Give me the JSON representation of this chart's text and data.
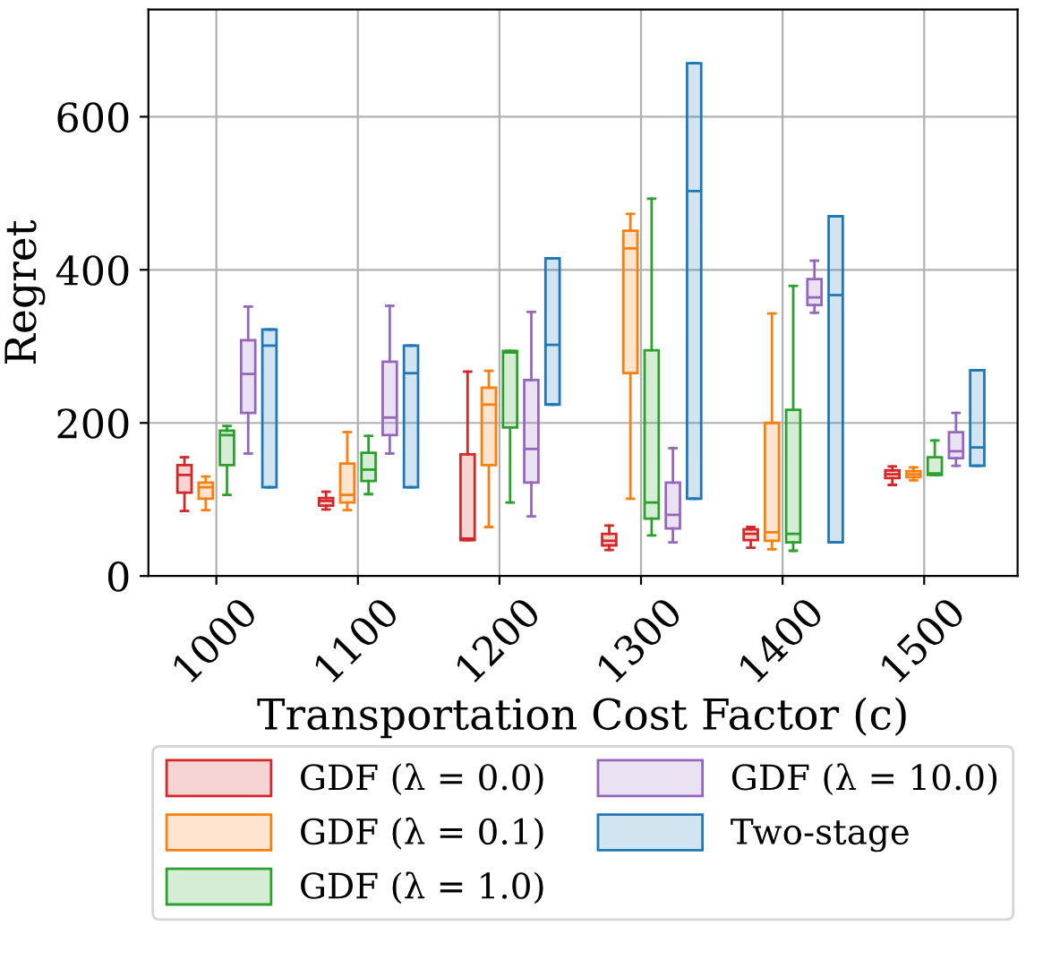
{
  "chart_data": {
    "type": "box",
    "xlabel": "Transportation Cost Factor (c)",
    "ylabel": "Regret",
    "categories": [
      "1000",
      "1100",
      "1200",
      "1300",
      "1400",
      "1500"
    ],
    "ylim": [
      0,
      740
    ],
    "yticks": [
      0,
      200,
      400,
      600
    ],
    "grid": true,
    "legend": "bottom",
    "series": [
      {
        "name": "GDF (λ = 0.0)",
        "color": "#d62728",
        "boxes": [
          {
            "low": 85,
            "q1": 109,
            "median": 132,
            "q3": 145,
            "high": 155
          },
          {
            "low": 87,
            "q1": 92,
            "median": 98,
            "q3": 102,
            "high": 110
          },
          {
            "low": 47,
            "q1": 47,
            "median": 49,
            "q3": 159,
            "high": 267
          },
          {
            "low": 34,
            "q1": 40,
            "median": 46,
            "q3": 55,
            "high": 66
          },
          {
            "low": 37,
            "q1": 47,
            "median": 55,
            "q3": 61,
            "high": 64
          },
          {
            "low": 119,
            "q1": 128,
            "median": 133,
            "q3": 138,
            "high": 143
          }
        ]
      },
      {
        "name": "GDF (λ = 0.1)",
        "color": "#ff7f0e",
        "boxes": [
          {
            "low": 86,
            "q1": 101,
            "median": 116,
            "q3": 122,
            "high": 130
          },
          {
            "low": 86,
            "q1": 96,
            "median": 106,
            "q3": 147,
            "high": 188
          },
          {
            "low": 64,
            "q1": 145,
            "median": 224,
            "q3": 246,
            "high": 268
          },
          {
            "low": 101,
            "q1": 265,
            "median": 428,
            "q3": 451,
            "high": 473
          },
          {
            "low": 35,
            "q1": 46,
            "median": 57,
            "q3": 200,
            "high": 343
          },
          {
            "low": 125,
            "q1": 129,
            "median": 133,
            "q3": 137,
            "high": 142
          }
        ]
      },
      {
        "name": "GDF (λ = 1.0)",
        "color": "#2ca02c",
        "boxes": [
          {
            "low": 106,
            "q1": 145,
            "median": 184,
            "q3": 190,
            "high": 196
          },
          {
            "low": 107,
            "q1": 124,
            "median": 139,
            "q3": 161,
            "high": 183
          },
          {
            "low": 96,
            "q1": 194,
            "median": 292,
            "q3": 294,
            "high": 294
          },
          {
            "low": 53,
            "q1": 75,
            "median": 96,
            "q3": 295,
            "high": 493
          },
          {
            "low": 33,
            "q1": 44,
            "median": 55,
            "q3": 217,
            "high": 379
          },
          {
            "low": 132,
            "q1": 132,
            "median": 134,
            "q3": 155,
            "high": 177
          }
        ]
      },
      {
        "name": "GDF (λ = 10.0)",
        "color": "#9467bd",
        "boxes": [
          {
            "low": 160,
            "q1": 213,
            "median": 264,
            "q3": 308,
            "high": 352
          },
          {
            "low": 160,
            "q1": 184,
            "median": 207,
            "q3": 280,
            "high": 353
          },
          {
            "low": 78,
            "q1": 122,
            "median": 166,
            "q3": 256,
            "high": 345
          },
          {
            "low": 44,
            "q1": 62,
            "median": 80,
            "q3": 122,
            "high": 167
          },
          {
            "low": 344,
            "q1": 354,
            "median": 364,
            "q3": 388,
            "high": 412
          },
          {
            "low": 144,
            "q1": 154,
            "median": 163,
            "q3": 188,
            "high": 213
          }
        ]
      },
      {
        "name": "Two-stage",
        "color": "#1f77b4",
        "boxes": [
          {
            "low": 116,
            "q1": 116,
            "median": 301,
            "q3": 322,
            "high": 322
          },
          {
            "low": 116,
            "q1": 116,
            "median": 265,
            "q3": 301,
            "high": 301
          },
          {
            "low": 224,
            "q1": 224,
            "median": 302,
            "q3": 415,
            "high": 415
          },
          {
            "low": 101,
            "q1": 101,
            "median": 503,
            "q3": 670,
            "high": 670
          },
          {
            "low": 44,
            "q1": 44,
            "median": 367,
            "q3": 470,
            "high": 470
          },
          {
            "low": 144,
            "q1": 144,
            "median": 168,
            "q3": 269,
            "high": 269
          }
        ]
      }
    ]
  }
}
